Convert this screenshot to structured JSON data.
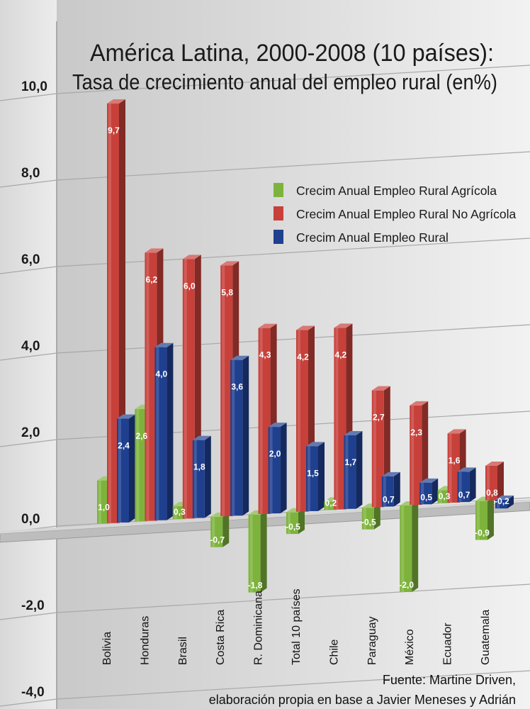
{
  "chart_data": {
    "type": "bar",
    "title_line1": "América Latina, 2000-2008 (10 países):",
    "title_line2": "Tasa de crecimiento anual del empleo rural (en%)",
    "categories": [
      "Bolivia",
      "Honduras",
      "Brasil",
      "Costa Rica",
      "R. Dominicana",
      "Total 10 países",
      "Chile",
      "Paraguay",
      "México",
      "Ecuador",
      "Guatemala"
    ],
    "series": [
      {
        "name": "Crecim Anual Empleo Rural Agrícola",
        "color": "#7db33c",
        "values": [
          1.0,
          2.6,
          0.3,
          -0.7,
          -1.8,
          -0.5,
          0.2,
          -0.5,
          -2.0,
          0.3,
          -0.9
        ],
        "labels": [
          "1,0",
          "2,6",
          "0,3",
          "-0,7",
          "-1,8",
          "-0,5",
          "0,2",
          "-0,5",
          "-2,0",
          "0,3",
          "-0,9"
        ]
      },
      {
        "name": "Crecim Anual Empleo Rural No Agrícola",
        "color": "#c7403a",
        "values": [
          9.7,
          6.2,
          6.0,
          5.8,
          4.3,
          4.2,
          4.2,
          2.7,
          2.3,
          1.6,
          0.8
        ],
        "labels": [
          "9,7",
          "6,2",
          "6,0",
          "5,8",
          "4,3",
          "4,2",
          "4,2",
          "2,7",
          "2,3",
          "1,6",
          "0,8"
        ]
      },
      {
        "name": "Crecim Anual Empleo Rural",
        "color": "#1f3f8f",
        "values": [
          2.4,
          4.0,
          1.8,
          3.6,
          2.0,
          1.5,
          1.7,
          0.7,
          0.5,
          0.7,
          -0.2
        ],
        "labels": [
          "2,4",
          "4,0",
          "1,8",
          "3,6",
          "2,0",
          "1,5",
          "1,7",
          "0,7",
          "0,5",
          "0,7",
          "-0,2"
        ]
      }
    ],
    "y_ticks": [
      "10,0",
      "8,0",
      "6,0",
      "4,0",
      "2,0",
      "0,0",
      "-2,0",
      "-4,0"
    ],
    "y_tick_values": [
      10,
      8,
      6,
      4,
      2,
      0,
      -2,
      -4
    ],
    "ylim": [
      -4,
      10
    ],
    "grid": true,
    "legend_position": "top-right",
    "source_line1": "Fuente: Martine Driven,",
    "source_line2": "elaboración propia en base a Javier Meneses y Adrián"
  }
}
